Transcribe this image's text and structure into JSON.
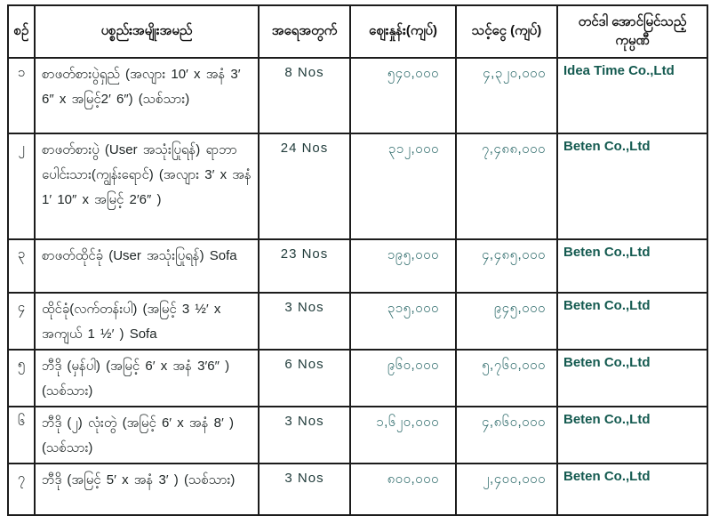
{
  "colors": {
    "border": "#1c1c1c",
    "header_text": "#121212",
    "item_text": "#1d2424",
    "qty_text": "#223d3c",
    "number_text": "#2e6b6b",
    "company_text": "#145a50",
    "background": "#ffffff"
  },
  "table": {
    "headers": [
      {
        "id": "no",
        "label": "စဉ်"
      },
      {
        "id": "item",
        "label": "ပစ္စည်းအမျိုးအမည်"
      },
      {
        "id": "qty",
        "label": "အရေအတွက်"
      },
      {
        "id": "price",
        "label": "ဈေးနှုန်း(ကျပ်)"
      },
      {
        "id": "amount",
        "label": "သင့်ငွေ (ကျပ်)"
      },
      {
        "id": "company",
        "label": "တင်ဒါ အောင်မြင်သည့် ကုမ္ပဏီ"
      }
    ],
    "rows": [
      {
        "no": "၁",
        "item": "စာဖတ်စားပွဲရှည် (အလျား 10′ x အနံ 3′ 6″ x အမြင့်2′ 6″) (သစ်သား)",
        "qty": "8  Nos",
        "price": "၅၄၀,၀၀၀",
        "amount": "၄,၃၂၀,၀၀၀",
        "company": "Idea Time Co.,Ltd"
      },
      {
        "no": "၂",
        "item": "စာဖတ်စားပွဲ (User အသုံးပြုရန်) ရာဘာပေါင်းသား(ကျွန်းရောင်) (အလျား 3′ x အနံ 1′ 10″ x အမြင့် 2′6″ )",
        "qty": "24 Nos",
        "price": "၃၁၂,၀၀၀",
        "amount": "၇,၄၈၈,၀၀၀",
        "company": "Beten Co.,Ltd"
      },
      {
        "no": "၃",
        "item": "စာဖတ်ထိုင်ခုံ (User အသုံးပြုရန်) Sofa",
        "qty": "23 Nos",
        "price": "၁၉၅,၀၀၀",
        "amount": "၄,၄၈၅,၀၀၀",
        "company": "Beten Co.,Ltd"
      },
      {
        "no": "၄",
        "item": "ထိုင်ခုံ(လက်တန်းပါ)  (အမြင့် 3 ½′ x အကျယ်  1 ½′ ) Sofa",
        "qty": "3  Nos",
        "price": "၃၁၅,၀၀၀",
        "amount": "၉၄၅,၀၀၀",
        "company": "Beten Co.,Ltd"
      },
      {
        "no": "၅",
        "item": "ဘီဒို (မှန်ပါ) (အမြင့် 6′ x အနံ 3′6″ ) (သစ်သား)",
        "qty": "6  Nos",
        "price": "၉၆၀,၀၀၀",
        "amount": "၅,၇၆၀,၀၀၀",
        "company": "Beten Co.,Ltd"
      },
      {
        "no": "၆",
        "item": "ဘီဒို (၂) လုံးတွဲ (အမြင့် 6′ x အနံ 8′ ) (သစ်သား)",
        "qty": "3  Nos",
        "price": "၁,၆၂၀,၀၀၀",
        "amount": "၄,၈၆၀,၀၀၀",
        "company": "Beten Co.,Ltd"
      },
      {
        "no": "၇",
        "item": "ဘီဒို (အမြင့် 5′  x အနံ 3′ ) (သစ်သား)",
        "qty": "3  Nos",
        "price": "၈၀၀,၀၀၀",
        "amount": "၂,၄၀၀,၀၀၀",
        "company": "Beten Co.,Ltd"
      }
    ]
  },
  "chart_data": {
    "type": "table",
    "title": "",
    "columns": [
      "စဉ်",
      "ပစ္စည်းအမျိုးအမည်",
      "အရေအတွက်",
      "ဈေးနှုန်း(ကျပ်)",
      "သင့်ငွေ (ကျပ်)",
      "တင်ဒါ အောင်မြင်သည့် ကုမ္ပဏီ"
    ],
    "rows": [
      [
        "၁",
        "စာဖတ်စားပွဲရှည် (အလျား 10′ x အနံ 3′ 6″ x အမြင့်2′ 6″) (သစ်သား)",
        "8 Nos",
        "၅၄၀,၀၀၀",
        "၄,၃၂၀,၀၀၀",
        "Idea Time Co.,Ltd"
      ],
      [
        "၂",
        "စာဖတ်စားပွဲ (User အသုံးပြုရန်) ရာဘာပေါင်းသား(ကျွန်းရောင်) (အလျား 3′ x အနံ 1′ 10″ x အမြင့် 2′6″ )",
        "24 Nos",
        "၃၁၂,၀၀၀",
        "၇,၄၈၈,၀၀၀",
        "Beten Co.,Ltd"
      ],
      [
        "၃",
        "စာဖတ်ထိုင်ခုံ (User အသုံးပြုရန်) Sofa",
        "23 Nos",
        "၁၉၅,၀၀၀",
        "၄,၄၈၅,၀၀၀",
        "Beten Co.,Ltd"
      ],
      [
        "၄",
        "ထိုင်ခုံ(လက်တန်းပါ) (အမြင့် 3 ½′ x အကျယ် 1 ½′ ) Sofa",
        "3 Nos",
        "၃၁၅,၀၀၀",
        "၉၄၅,၀၀၀",
        "Beten Co.,Ltd"
      ],
      [
        "၅",
        "ဘီဒို (မှန်ပါ) (အမြင့် 6′ x အနံ 3′6″ ) (သစ်သား)",
        "6 Nos",
        "၉၆၀,၀၀၀",
        "၅,၇၆၀,၀၀၀",
        "Beten Co.,Ltd"
      ],
      [
        "၆",
        "ဘီဒို (၂) လုံးတွဲ (အမြင့် 6′ x အနံ 8′ ) (သစ်သား)",
        "3 Nos",
        "၁,၆၂၀,၀၀၀",
        "၄,၈၆၀,၀၀၀",
        "Beten Co.,Ltd"
      ],
      [
        "၇",
        "ဘီဒို (အမြင့် 5′ x အနံ 3′ ) (သစ်သား)",
        "3 Nos",
        "၈၀၀,၀၀၀",
        "၂,၄၀၀,၀၀၀",
        "Beten Co.,Ltd"
      ]
    ]
  }
}
